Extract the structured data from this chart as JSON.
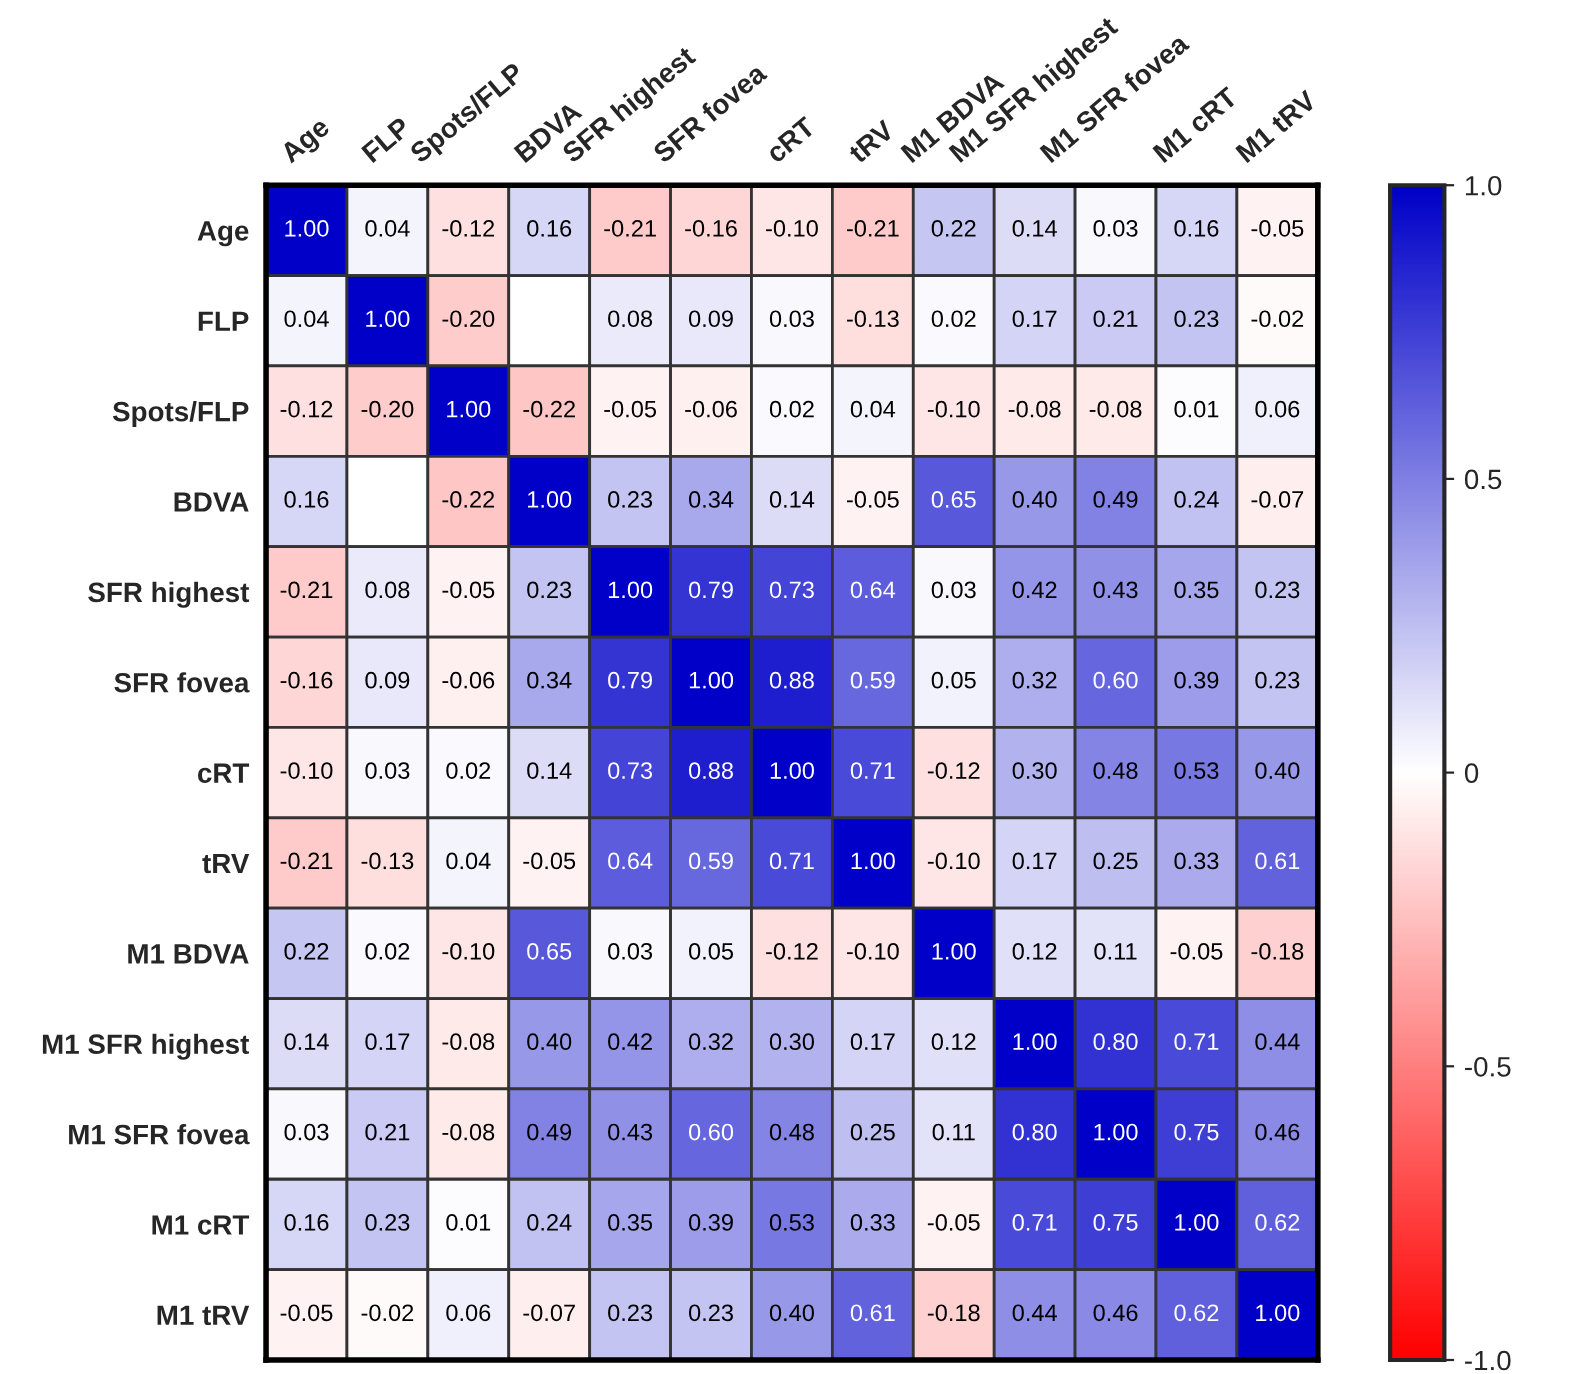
{
  "chart_data": {
    "type": "heatmap",
    "categories": [
      "Age",
      "FLP",
      "Spots/FLP",
      "BDVA",
      "SFR highest",
      "SFR fovea",
      "cRT",
      "tRV",
      "M1 BDVA",
      "M1 SFR highest",
      "M1 SFR fovea",
      "M1 cRT",
      "M1 tRV"
    ],
    "y_categories": [
      "Age",
      "FLP",
      "Spots/FLP",
      "BDVA",
      "SFR highest",
      "SFR fovea",
      "cRT",
      "tRV",
      "M1 BDVA",
      "M1 SFR highest",
      "M1 SFR fovea",
      "M1 cRT",
      "M1 tRV"
    ],
    "cells": [
      [
        1.0,
        0.04,
        -0.12,
        0.16,
        -0.21,
        -0.16,
        -0.1,
        -0.21,
        0.22,
        0.14,
        0.03,
        0.16,
        -0.05
      ],
      [
        0.04,
        1.0,
        -0.2,
        null,
        0.08,
        0.09,
        0.03,
        -0.13,
        0.02,
        0.17,
        0.21,
        0.23,
        -0.02
      ],
      [
        -0.12,
        -0.2,
        1.0,
        -0.22,
        -0.05,
        -0.06,
        0.02,
        0.04,
        -0.1,
        -0.08,
        -0.08,
        0.01,
        0.06
      ],
      [
        0.16,
        null,
        -0.22,
        1.0,
        0.23,
        0.34,
        0.14,
        -0.05,
        0.65,
        0.4,
        0.49,
        0.24,
        -0.07
      ],
      [
        -0.21,
        0.08,
        -0.05,
        0.23,
        1.0,
        0.79,
        0.73,
        0.64,
        0.03,
        0.42,
        0.43,
        0.35,
        0.23
      ],
      [
        -0.16,
        0.09,
        -0.06,
        0.34,
        0.79,
        1.0,
        0.88,
        0.59,
        0.05,
        0.32,
        0.6,
        0.39,
        0.23
      ],
      [
        -0.1,
        0.03,
        0.02,
        0.14,
        0.73,
        0.88,
        1.0,
        0.71,
        -0.12,
        0.3,
        0.48,
        0.53,
        0.4
      ],
      [
        -0.21,
        -0.13,
        0.04,
        -0.05,
        0.64,
        0.59,
        0.71,
        1.0,
        -0.1,
        0.17,
        0.25,
        0.33,
        0.61
      ],
      [
        0.22,
        0.02,
        -0.1,
        0.65,
        0.03,
        0.05,
        -0.12,
        -0.1,
        1.0,
        0.12,
        0.11,
        -0.05,
        -0.18
      ],
      [
        0.14,
        0.17,
        -0.08,
        0.4,
        0.42,
        0.32,
        0.3,
        0.17,
        0.12,
        1.0,
        0.8,
        0.71,
        0.44
      ],
      [
        0.03,
        0.21,
        -0.08,
        0.49,
        0.43,
        0.6,
        0.48,
        0.25,
        0.11,
        0.8,
        1.0,
        0.75,
        0.46
      ],
      [
        0.16,
        0.23,
        0.01,
        0.24,
        0.35,
        0.39,
        0.53,
        0.33,
        -0.05,
        0.71,
        0.75,
        1.0,
        0.62
      ],
      [
        -0.05,
        -0.02,
        0.06,
        -0.07,
        0.23,
        0.23,
        0.4,
        0.61,
        -0.18,
        0.44,
        0.46,
        0.62,
        1.0
      ]
    ],
    "clim": [
      -1,
      1
    ],
    "cticks": [
      {
        "value": -1,
        "label": "-1.0"
      },
      {
        "value": -0.5,
        "label": "-0.5"
      },
      0,
      0.5,
      {
        "value": 1,
        "label": "1.0"
      }
    ],
    "cell_labels": [
      [
        "1.00",
        "0.04",
        "-0.12",
        "0.16",
        "-0.21",
        "-0.16",
        "-0.10",
        "-0.21",
        "0.22",
        "0.14",
        "0.03",
        "0.16",
        "-0.05"
      ],
      [
        "0.04",
        "1.00",
        "-0.20",
        null,
        "0.08",
        "0.09",
        "0.03",
        "-0.13",
        "0.02",
        "0.17",
        "0.21",
        "0.23",
        "-0.02"
      ],
      [
        "-0.12",
        "-0.20",
        "1.00",
        "-0.22",
        "-0.05",
        "-0.06",
        "0.02",
        "0.04",
        "-0.10",
        "-0.08",
        "-0.08",
        "0.01",
        "0.06"
      ],
      [
        "0.16",
        null,
        "-0.22",
        "1.00",
        "0.23",
        "0.34",
        "0.14",
        "-0.05",
        "0.65",
        "0.40",
        "0.49",
        "0.24",
        "-0.07"
      ],
      [
        "-0.21",
        "0.08",
        "-0.05",
        "0.23",
        "1.00",
        "0.79",
        "0.73",
        "0.64",
        "0.03",
        "0.42",
        "0.43",
        "0.35",
        "0.23"
      ],
      [
        "-0.16",
        "0.09",
        "-0.06",
        "0.34",
        "0.79",
        "1.00",
        "0.88",
        "0.59",
        "0.05",
        "0.32",
        "0.60",
        "0.39",
        "0.23"
      ],
      [
        "-0.10",
        "0.03",
        "0.02",
        "0.14",
        "0.73",
        "0.88",
        "1.00",
        "0.71",
        "-0.12",
        "0.30",
        "0.48",
        "0.53",
        "0.40"
      ],
      [
        "-0.21",
        "-0.13",
        "0.04",
        "-0.05",
        "0.64",
        "0.59",
        "0.71",
        "1.00",
        "-0.10",
        "0.17",
        "0.25",
        "0.33",
        "0.61"
      ],
      [
        "0.22",
        "0.02",
        "-0.10",
        "0.65",
        "0.03",
        "0.05",
        "-0.12",
        "-0.10",
        "1.00",
        "0.12",
        "0.11",
        "-0.05",
        "-0.18"
      ],
      [
        "0.14",
        "0.17",
        "-0.08",
        "0.40",
        "0.42",
        "0.32",
        "0.30",
        "0.17",
        "0.12",
        "1.00",
        "0.80",
        "0.71",
        "0.44"
      ],
      [
        "0.03",
        "0.21",
        "-0.08",
        "0.49",
        "0.43",
        "0.60",
        "0.48",
        "0.25",
        "0.11",
        "0.80",
        "1.00",
        "0.75",
        "0.46"
      ],
      [
        "0.16",
        "0.23",
        "0.01",
        "0.24",
        "0.35",
        "0.39",
        "0.53",
        "0.33",
        "-0.05",
        "0.71",
        "0.75",
        "1.00",
        "0.62"
      ],
      [
        "-0.05",
        "-0.02",
        "0.06",
        "-0.07",
        "0.23",
        "0.23",
        "0.40",
        "0.61",
        "-0.18",
        "0.44",
        "0.46",
        "0.62",
        "1.00"
      ]
    ],
    "data_labels": true
  }
}
